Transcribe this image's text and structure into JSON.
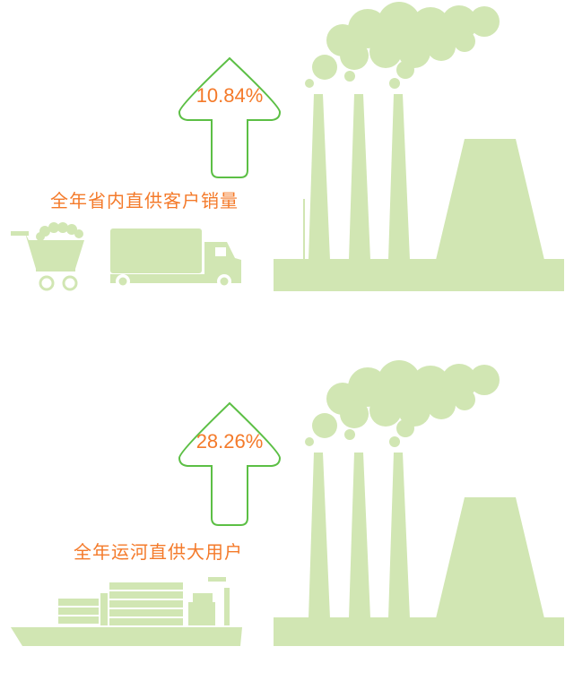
{
  "panels": [
    {
      "percent": "10.84%",
      "caption": "全年省内直供客户销量"
    },
    {
      "percent": "28.26%",
      "caption": "全年运河直供大用户"
    }
  ],
  "colors": {
    "fill": "#d1e6b3",
    "arrow": "#5cbf45",
    "text": "#f47a2a"
  },
  "icons": [
    "factory-icon",
    "smoke-icon",
    "up-arrow-icon",
    "cart-icon",
    "truck-icon",
    "ship-icon"
  ]
}
